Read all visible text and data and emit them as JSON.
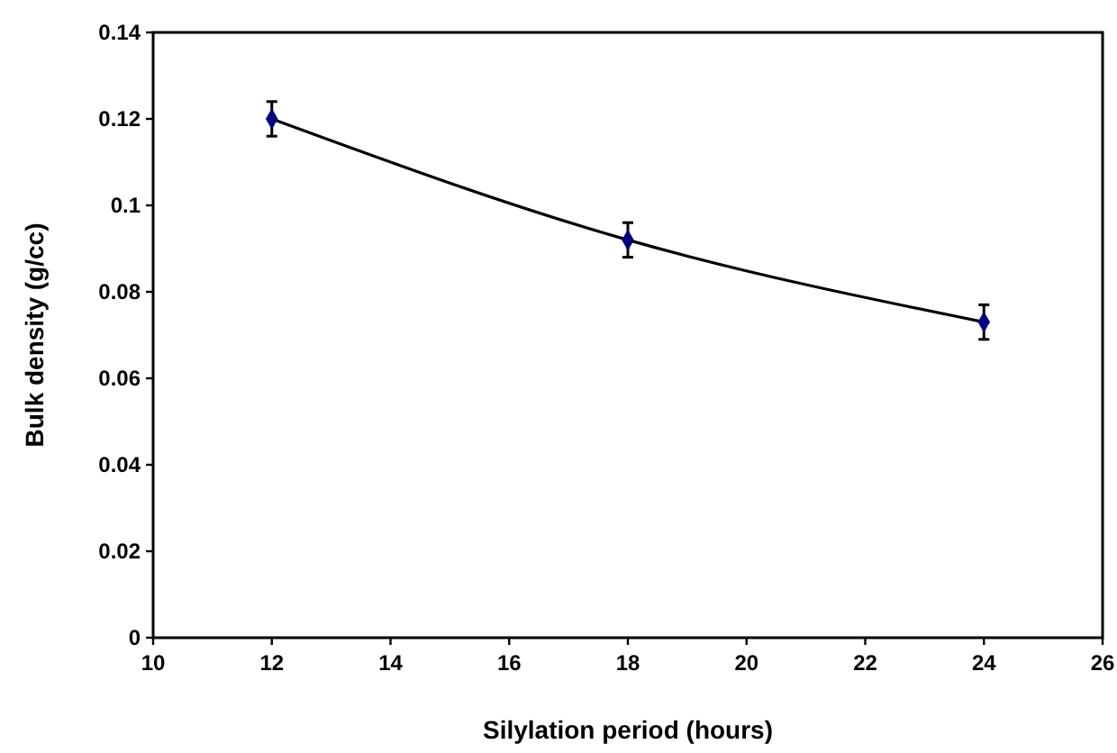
{
  "chart_data": {
    "type": "line",
    "xlabel": "Silylation period (hours)",
    "ylabel": "Bulk density (g/cc)",
    "x": [
      12,
      18,
      24
    ],
    "series": [
      {
        "color": "#000080",
        "values": [
          0.12,
          0.092,
          0.073
        ],
        "errors": [
          0.004,
          0.004,
          0.004
        ]
      }
    ],
    "xlim": [
      10,
      26
    ],
    "xticks": [
      10,
      12,
      14,
      16,
      18,
      20,
      22,
      24,
      26
    ],
    "ylim": [
      0,
      0.14
    ],
    "yticks": [
      0,
      0.02,
      0.04,
      0.06,
      0.08,
      0.1,
      0.12,
      0.14
    ],
    "grid": false,
    "marker": "diamond",
    "line_style": "solid"
  }
}
